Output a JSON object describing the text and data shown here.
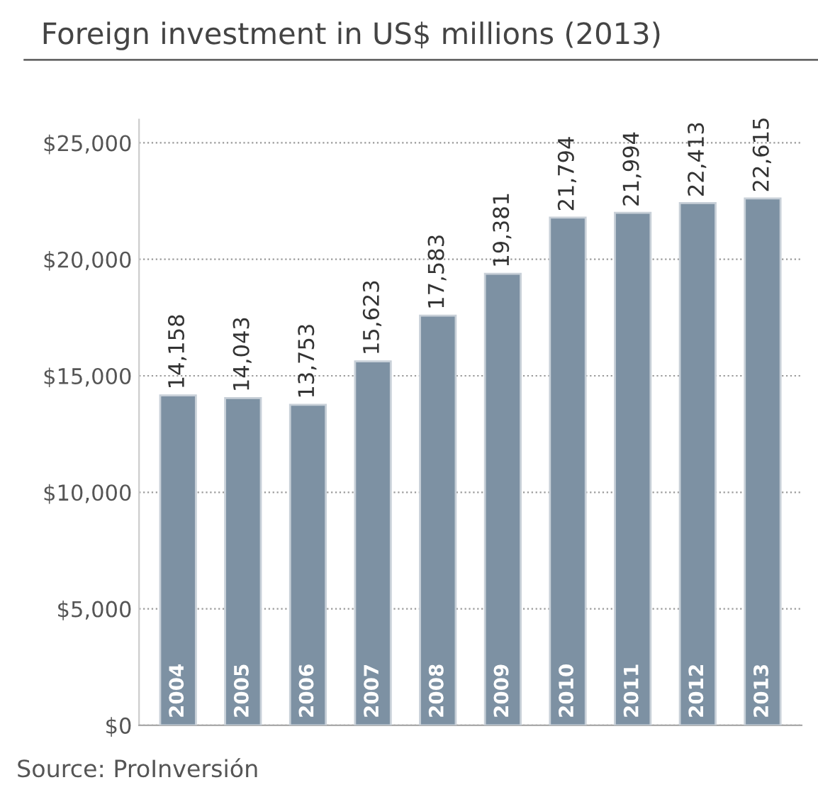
{
  "chart_data": {
    "type": "bar",
    "title": "Foreign investment in US$ millions (2013)",
    "categories": [
      "2004",
      "2005",
      "2006",
      "2007",
      "2008",
      "2009",
      "2010",
      "2011",
      "2012",
      "2013"
    ],
    "values": [
      14158,
      14043,
      13753,
      15623,
      17583,
      19381,
      21794,
      21994,
      22413,
      22615
    ],
    "value_labels": [
      "14,158",
      "14,043",
      "13,753",
      "15,623",
      "17,583",
      "19,381",
      "21,794",
      "21,994",
      "22,413",
      "22,615"
    ],
    "color": "#7d91a3",
    "ylim": [
      0,
      26000
    ],
    "yticks": [
      {
        "value": 0,
        "label": "$0"
      },
      {
        "value": 5000,
        "label": "$5,000"
      },
      {
        "value": 10000,
        "label": "$10,000"
      },
      {
        "value": 15000,
        "label": "$15,000"
      },
      {
        "value": 20000,
        "label": "$20,000"
      },
      {
        "value": 25000,
        "label": "$25,000"
      }
    ],
    "grid": "y",
    "annotations": [
      "Source: ProInversión"
    ]
  }
}
